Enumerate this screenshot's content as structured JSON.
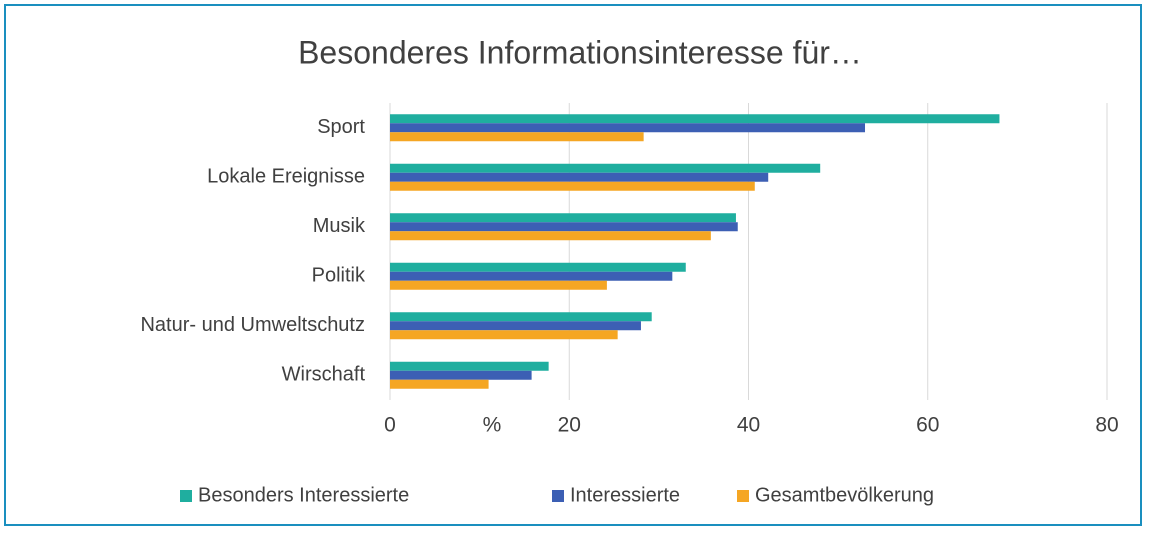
{
  "chart_data": {
    "type": "hbar",
    "title": "Besonderes Informationsinteresse für…",
    "categories": [
      "Sport",
      "Lokale Ereignisse",
      "Musik",
      "Politik",
      "Natur- und Umweltschutz",
      "Wirschaft"
    ],
    "series": [
      {
        "name": "Besonders Interessierte",
        "color": "#1fae9f",
        "values": [
          68,
          48,
          38.6,
          33,
          29.2,
          17.7
        ]
      },
      {
        "name": "Interessierte",
        "color": "#3c5fb4",
        "values": [
          53,
          42.2,
          38.8,
          31.5,
          28,
          15.8
        ]
      },
      {
        "name": "Gesamtbevölkerung",
        "color": "#f5a623",
        "values": [
          28.3,
          40.7,
          35.8,
          24.2,
          25.4,
          11
        ]
      }
    ],
    "xlabel": "%",
    "xlim": [
      0,
      80
    ],
    "xticks": [
      0,
      20,
      40,
      60,
      80
    ],
    "grid": true,
    "legend": "bottom"
  }
}
